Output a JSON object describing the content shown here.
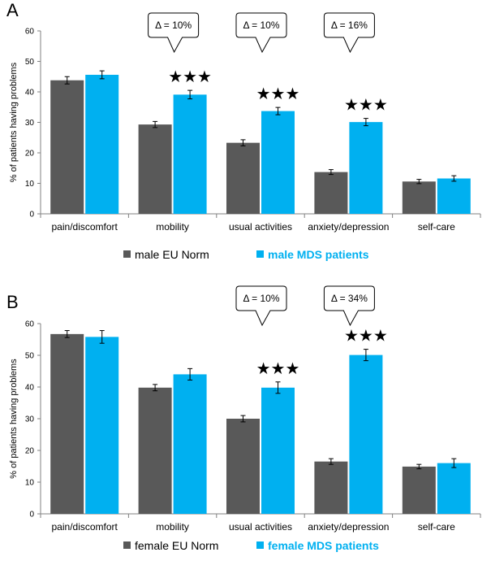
{
  "colors": {
    "norm": "#595959",
    "mds": "#00b0f0",
    "axis": "#808080",
    "text": "#000000"
  },
  "chart_data": [
    {
      "type": "bar",
      "panel": "A",
      "title": "",
      "ylabel": "% of patients having problems",
      "xlabel": "",
      "ylim": [
        0,
        60
      ],
      "yticks": [
        "0",
        "10",
        "20",
        "30",
        "40",
        "50",
        "60"
      ],
      "categories": [
        "pain/discomfort",
        "mobility",
        "usual activities",
        "anxiety/depression",
        "self-care"
      ],
      "series": [
        {
          "name": "male EU Norm",
          "values": [
            43.8,
            29.3,
            23.3,
            13.7,
            10.6
          ],
          "errors": [
            1.2,
            1.0,
            1.0,
            0.8,
            0.7
          ]
        },
        {
          "name": "male MDS patients",
          "values": [
            45.6,
            39.1,
            33.7,
            30.1,
            11.6
          ],
          "errors": [
            1.3,
            1.4,
            1.2,
            1.2,
            0.9
          ]
        }
      ],
      "annotations": [
        {
          "category_index": 1,
          "delta": "Δ = 10%",
          "stars": "★★★"
        },
        {
          "category_index": 2,
          "delta": "Δ = 10%",
          "stars": "★★★"
        },
        {
          "category_index": 3,
          "delta": "Δ = 16%",
          "stars": "★★★"
        }
      ]
    },
    {
      "type": "bar",
      "panel": "B",
      "title": "",
      "ylabel": "% of patients having problems",
      "xlabel": "",
      "ylim": [
        0,
        60
      ],
      "yticks": [
        "0",
        "10",
        "20",
        "30",
        "40",
        "50",
        "60"
      ],
      "categories": [
        "pain/discomfort",
        "mobility",
        "usual activities",
        "anxiety/depression",
        "self-care"
      ],
      "series": [
        {
          "name": "female EU Norm",
          "values": [
            56.7,
            39.8,
            30.0,
            16.5,
            14.9
          ],
          "errors": [
            1.1,
            1.0,
            1.0,
            0.9,
            0.7
          ]
        },
        {
          "name": "female MDS patients",
          "values": [
            55.8,
            44.0,
            39.8,
            50.1,
            16.0
          ],
          "errors": [
            2.0,
            1.8,
            1.8,
            1.8,
            1.4
          ]
        }
      ],
      "annotations": [
        {
          "category_index": 2,
          "delta": "Δ = 10%",
          "stars": "★★★"
        },
        {
          "category_index": 3,
          "delta": "Δ = 34%",
          "stars": "★★★"
        }
      ]
    }
  ]
}
